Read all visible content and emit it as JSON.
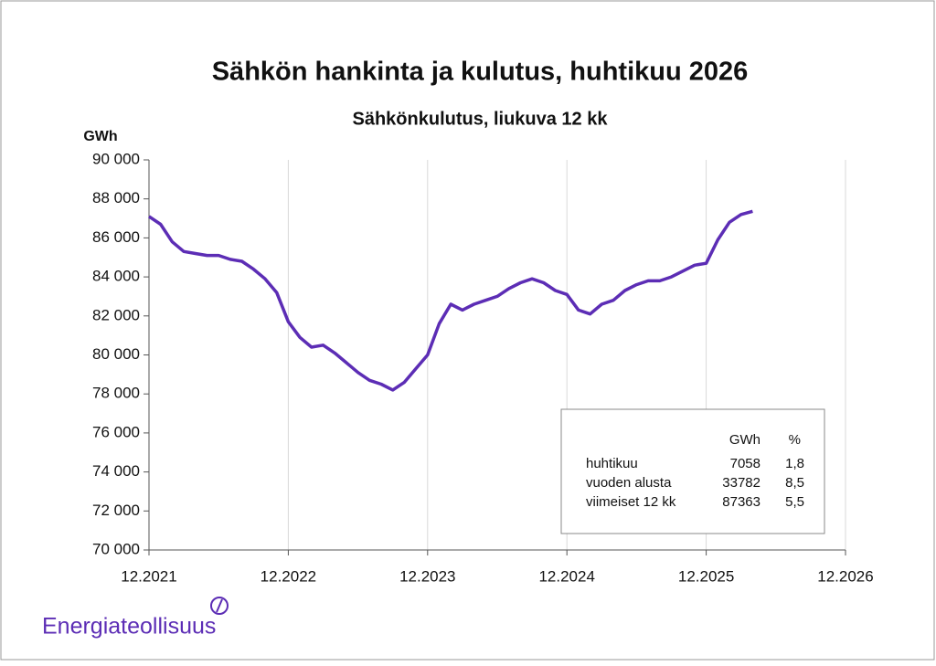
{
  "chart_data": {
    "type": "line",
    "title": "Sähkön hankinta ja kulutus, huhtikuu 2026",
    "subtitle": "Sähkönkulutus, liukuva 12 kk",
    "ylabel": "GWh",
    "color": "#5c2db5",
    "grid": true,
    "x": [
      "12.2021",
      "1.2022",
      "2.2022",
      "3.2022",
      "4.2022",
      "5.2022",
      "6.2022",
      "7.2022",
      "8.2022",
      "9.2022",
      "10.2022",
      "11.2022",
      "12.2022",
      "1.2023",
      "2.2023",
      "3.2023",
      "4.2023",
      "5.2023",
      "6.2023",
      "7.2023",
      "8.2023",
      "9.2023",
      "10.2023",
      "11.2023",
      "12.2023",
      "1.2024",
      "2.2024",
      "3.2024",
      "4.2024",
      "5.2024",
      "6.2024",
      "7.2024",
      "8.2024",
      "9.2024",
      "10.2024",
      "11.2024",
      "12.2024",
      "1.2025",
      "2.2025",
      "3.2025",
      "4.2025",
      "5.2025",
      "6.2025",
      "7.2025",
      "8.2025",
      "9.2025",
      "10.2025",
      "11.2025",
      "12.2025",
      "1.2026",
      "2.2026",
      "3.2026",
      "4.2026"
    ],
    "values": [
      87100,
      86700,
      85800,
      85300,
      85200,
      85100,
      85100,
      84900,
      84800,
      84400,
      83900,
      83200,
      81700,
      80900,
      80400,
      80500,
      80100,
      79600,
      79100,
      78700,
      78500,
      78200,
      78600,
      79300,
      80000,
      81600,
      82600,
      82300,
      82600,
      82800,
      83000,
      83400,
      83700,
      83900,
      83700,
      83300,
      83100,
      82300,
      82100,
      82600,
      82800,
      83300,
      83600,
      83800,
      83800,
      84000,
      84300,
      84600,
      84700,
      85900,
      86800,
      87200,
      87363
    ],
    "xlim": [
      "12.2021",
      "12.2026"
    ],
    "xticks": [
      "12.2021",
      "12.2022",
      "12.2023",
      "12.2024",
      "12.2025",
      "12.2026"
    ],
    "ylim": [
      70000,
      90000
    ],
    "yticks": [
      {
        "value": 70000,
        "label": "70 000"
      },
      {
        "value": 72000,
        "label": "72 000"
      },
      {
        "value": 74000,
        "label": "74 000"
      },
      {
        "value": 76000,
        "label": "76 000"
      },
      {
        "value": 78000,
        "label": "78 000"
      },
      {
        "value": 80000,
        "label": "80 000"
      },
      {
        "value": 82000,
        "label": "82 000"
      },
      {
        "value": 84000,
        "label": "84 000"
      },
      {
        "value": 86000,
        "label": "86 000"
      },
      {
        "value": 88000,
        "label": "88 000"
      },
      {
        "value": 90000,
        "label": "90 000"
      }
    ],
    "table": {
      "header": [
        "GWh",
        "%"
      ],
      "rows": [
        [
          "huhtikuu",
          "7058",
          "1,8"
        ],
        [
          "vuoden alusta",
          "33782",
          "8,5"
        ],
        [
          "viimeiset 12 kk",
          "87363",
          "5,5"
        ]
      ]
    }
  },
  "logo": "Energiateollisuus"
}
